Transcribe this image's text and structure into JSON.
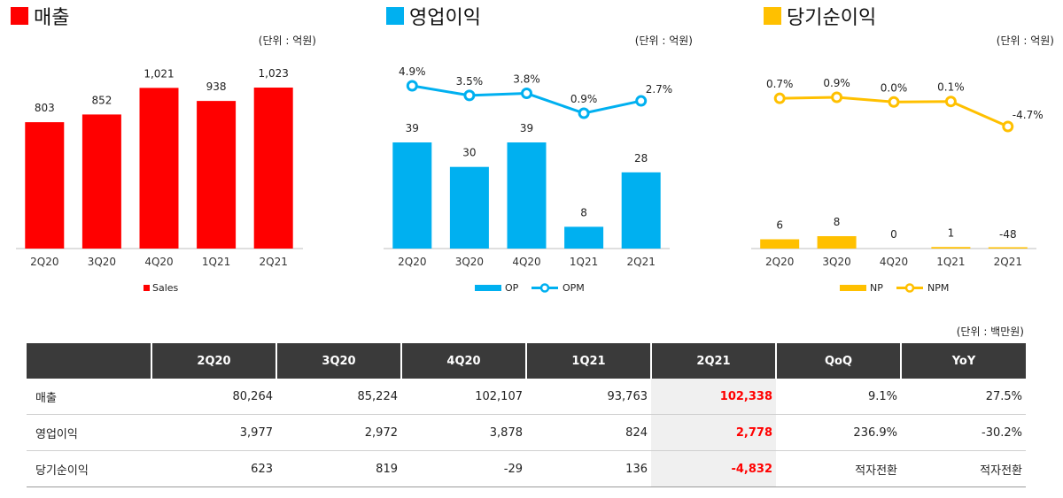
{
  "chart_data": [
    {
      "type": "bar",
      "title": "매출",
      "unit": "(단위 : 억원)",
      "categories": [
        "2Q20",
        "3Q20",
        "4Q20",
        "1Q21",
        "2Q21"
      ],
      "series": [
        {
          "name": "Sales",
          "values": [
            803,
            852,
            1021,
            938,
            1023
          ],
          "labels": [
            "803",
            "852",
            "1,021",
            "938",
            "1,023"
          ]
        }
      ],
      "colors": {
        "title_square": "#ff0000",
        "bar": "#ff0000"
      }
    },
    {
      "type": "bar+line",
      "title": "영업이익",
      "unit": "(단위 : 억원)",
      "categories": [
        "2Q20",
        "3Q20",
        "4Q20",
        "1Q21",
        "2Q21"
      ],
      "series": [
        {
          "name": "OP",
          "values": [
            39,
            30,
            39,
            8,
            28
          ],
          "labels": [
            "39",
            "30",
            "39",
            "8",
            "28"
          ]
        },
        {
          "name": "OPM",
          "values": [
            4.9,
            3.5,
            3.8,
            0.9,
            2.7
          ],
          "labels": [
            "4.9%",
            "3.5%",
            "3.8%",
            "0.9%",
            "2.7%"
          ]
        }
      ],
      "colors": {
        "title_square": "#00b0f0",
        "bar": "#00b0f0",
        "line": "#00b0f0"
      }
    },
    {
      "type": "bar+line",
      "title": "당기순이익",
      "unit": "(단위 : 억원)",
      "categories": [
        "2Q20",
        "3Q20",
        "4Q20",
        "1Q21",
        "2Q21"
      ],
      "series": [
        {
          "name": "NP",
          "values": [
            6,
            8,
            0,
            1,
            -48
          ],
          "labels": [
            "6",
            "8",
            "0",
            "1",
            "-48"
          ]
        },
        {
          "name": "NPM",
          "values": [
            0.7,
            0.9,
            0.0,
            0.1,
            -4.7
          ],
          "labels": [
            "0.7%",
            "0.9%",
            "0.0%",
            "0.1%",
            "-4.7%"
          ]
        }
      ],
      "colors": {
        "title_square": "#ffc000",
        "bar": "#ffc000",
        "line": "#ffc000"
      }
    }
  ],
  "table": {
    "unit": "(단위 : 백만원)",
    "headers": [
      "",
      "2Q20",
      "3Q20",
      "4Q20",
      "1Q21",
      "2Q21",
      "QoQ",
      "YoY"
    ],
    "rows": [
      {
        "label": "매출",
        "cells": [
          "80,264",
          "85,224",
          "102,107",
          "93,763",
          "102,338",
          "9.1%",
          "27.5%"
        ]
      },
      {
        "label": "영업이익",
        "cells": [
          "3,977",
          "2,972",
          "3,878",
          "824",
          "2,778",
          "236.9%",
          "-30.2%"
        ]
      },
      {
        "label": "당기순이익",
        "cells": [
          "623",
          "819",
          "-29",
          "136",
          "-4,832",
          "적자전환",
          "적자전환"
        ]
      }
    ],
    "highlight_column": 5,
    "colors": {
      "header_bg": "#3a3a3a",
      "highlight_text": "#ff0000",
      "highlight_bg": "#f0f0f0"
    }
  }
}
